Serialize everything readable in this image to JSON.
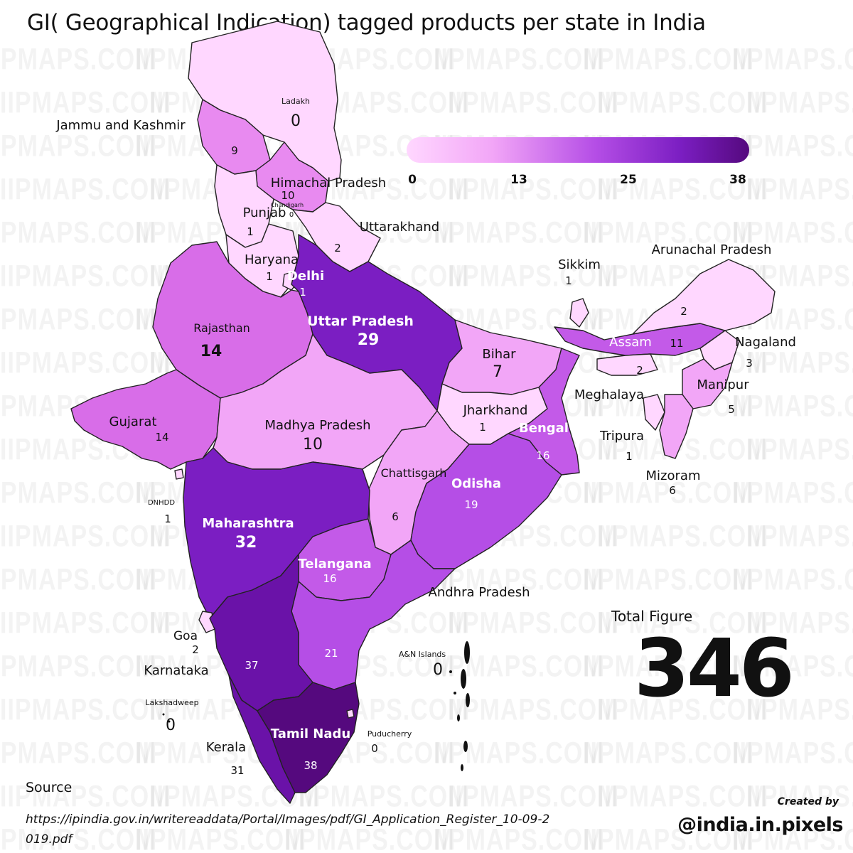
{
  "title": "GI( Geographical Indication) tagged products per state in India",
  "watermark": "IIPMAPS.COM",
  "legend": {
    "ticks": [
      "0",
      "13",
      "25",
      "38"
    ],
    "min": 0,
    "max": 38
  },
  "colors": {
    "scale": [
      "#ffd7ff",
      "#f2a6f7",
      "#b54ee6",
      "#7b1ec2",
      "#55097e"
    ],
    "border": "#222222"
  },
  "states": {
    "ladakh": {
      "name": "Ladakh",
      "value": "0"
    },
    "jk": {
      "name": "Jammu and Kashmir",
      "value": "9"
    },
    "himachal": {
      "name": "Himachal Pradesh",
      "value": "10"
    },
    "chandigarh": {
      "name": "Chandigarh",
      "value": "0"
    },
    "punjab": {
      "name": "Punjab",
      "value": "1"
    },
    "uttarakhand": {
      "name": "Uttarakhand",
      "value": "2"
    },
    "haryana": {
      "name": "Haryana",
      "value": "1"
    },
    "delhi": {
      "name": "Delhi",
      "value": "1"
    },
    "up": {
      "name": "Uttar Pradesh",
      "value": "29"
    },
    "rajasthan": {
      "name": "Rajasthan",
      "value": "14"
    },
    "gujarat": {
      "name": "Gujarat",
      "value": "14"
    },
    "mp": {
      "name": "Madhya Pradesh",
      "value": "10"
    },
    "bihar": {
      "name": "Bihar",
      "value": "7"
    },
    "jharkhand": {
      "name": "Jharkhand",
      "value": "1"
    },
    "bengal": {
      "name": "Bengal",
      "value": "16"
    },
    "chhattisgarh": {
      "name": "Chattisgarh",
      "value": "6"
    },
    "odisha": {
      "name": "Odisha",
      "value": "19"
    },
    "maharashtra": {
      "name": "Maharashtra",
      "value": "32"
    },
    "telangana": {
      "name": "Telangana",
      "value": "16"
    },
    "andhra": {
      "name": "Andhra Pradesh",
      "value": "21"
    },
    "goa": {
      "name": "Goa",
      "value": "2"
    },
    "karnataka": {
      "name": "Karnataka",
      "value": "37"
    },
    "kerala": {
      "name": "Kerala",
      "value": "31"
    },
    "tamilnadu": {
      "name": "Tamil Nadu",
      "value": "38"
    },
    "puducherry": {
      "name": "Puducherry",
      "value": "0"
    },
    "lakshadweep": {
      "name": "Lakshadweep",
      "value": "0"
    },
    "dnhdd": {
      "name": "DNHDD",
      "value": "1"
    },
    "an": {
      "name": "A&N Islands",
      "value": "0"
    },
    "sikkim": {
      "name": "Sikkim",
      "value": "1"
    },
    "arunachal": {
      "name": "Arunachal Pradesh",
      "value": "2"
    },
    "assam": {
      "name": "Assam",
      "value": "11"
    },
    "meghalaya": {
      "name": "Meghalaya",
      "value": "2"
    },
    "nagaland": {
      "name": "Nagaland",
      "value": "3"
    },
    "manipur": {
      "name": "Manipur",
      "value": "5"
    },
    "tripura": {
      "name": "Tripura",
      "value": "1"
    },
    "mizoram": {
      "name": "Mizoram",
      "value": "6"
    }
  },
  "total": {
    "label": "Total Figure",
    "value": "346"
  },
  "source": {
    "label": "Source",
    "url": "https://ipindia.gov.in/writereaddata/Portal/Images/pdf/GI_Application_Register_10-09-2019.pdf"
  },
  "credit": {
    "label": "Created by",
    "handle": "@india.in.pixels"
  }
}
